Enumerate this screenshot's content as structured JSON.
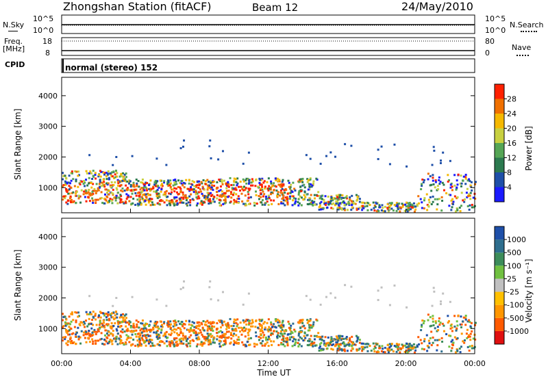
{
  "header": {
    "station": "Zhongshan Station (fitACF)",
    "beam": "Beam 12",
    "date": "24/May/2010"
  },
  "top_panels": {
    "nsky_label": "N.Sky",
    "nsky_top": "10^5",
    "nsky_bottom": "10^0",
    "nsearch_label": "N.Search",
    "nsearch_top": "10^5",
    "nsearch_bottom": "10^0",
    "freq_label_1": "Freq.",
    "freq_label_2": "[MHz]",
    "freq_top": "18",
    "freq_bottom": "8",
    "nave_label": "Nave",
    "nave_top": "80",
    "nave_bottom": "0",
    "cpid_label": "CPID",
    "cpid_text": "normal (stereo) 152"
  },
  "colors": {
    "power_scale": [
      "#1a1aff",
      "#1e4fa8",
      "#2c7a4f",
      "#55a555",
      "#c8d040",
      "#f5b800",
      "#f07000",
      "#ff2000"
    ],
    "velocity_scale": [
      "#e01010",
      "#ff5a00",
      "#ff9600",
      "#ffc000",
      "#c0c0c0",
      "#70c040",
      "#3c8c5a",
      "#2e6e8e",
      "#1e4fa8"
    ]
  },
  "chart_data": [
    {
      "type": "heatmap",
      "title": "",
      "ylabel": "Slant Range [km]",
      "xlabel": "",
      "ylim": [
        180,
        4600
      ],
      "yticks": [
        "1000",
        "2000",
        "3000",
        "4000"
      ],
      "colorbar": {
        "label": "Power [dB]",
        "ticks": [
          "4",
          "8",
          "12",
          "16",
          "20",
          "24",
          "28"
        ],
        "range": [
          0,
          32
        ]
      }
    },
    {
      "type": "heatmap",
      "title": "",
      "ylabel": "Slant Range [km]",
      "xlabel": "Time UT",
      "ylim": [
        180,
        4600
      ],
      "yticks": [
        "1000",
        "2000",
        "3000",
        "4000"
      ],
      "xticks": [
        "00:00",
        "04:00",
        "08:00",
        "12:00",
        "16:00",
        "20:00",
        "00:00"
      ],
      "xlim": [
        "00:00",
        "24:00"
      ],
      "colorbar": {
        "label": "Velocity [m s⁻¹]",
        "ticks": [
          "-1000",
          "-500",
          "-100",
          "-25",
          "25",
          "100",
          "500",
          "1000"
        ]
      }
    }
  ]
}
